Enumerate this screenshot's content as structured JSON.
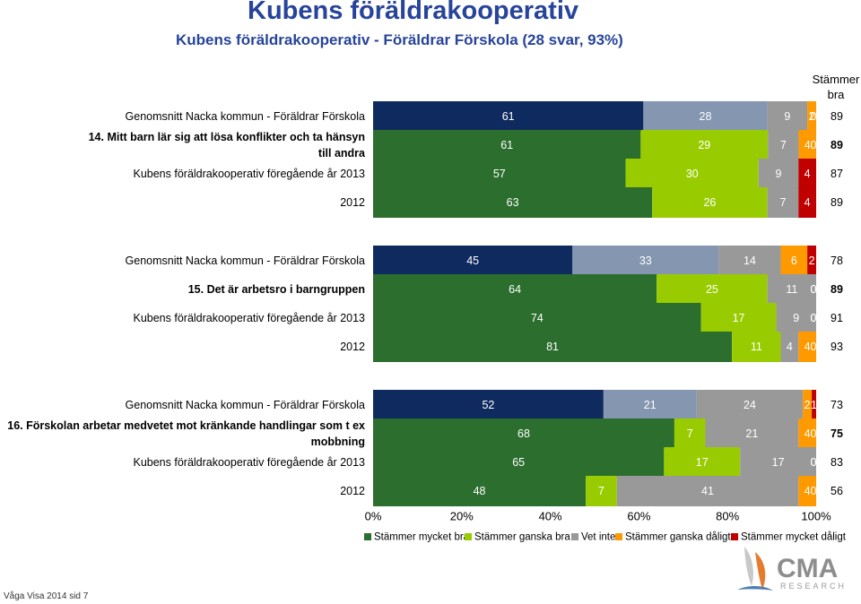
{
  "page": {
    "title": "Kubens föräldrakooperativ",
    "subtitle": "Kubens föräldrakooperativ - Föräldrar Förskola (28 svar, 93%)",
    "footer": "Våga Visa 2014 sid 7"
  },
  "logo": {
    "name": "CMA",
    "sub": "RESEARCH"
  },
  "colors": {
    "Stämmer mycket bra": "#2b6e2e",
    "Stämmer ganska bra": "#99cc00",
    "Vet inte": "#999999",
    "Stämmer ganska dåligt": "#ff9900",
    "Stämmer mycket dåligt": "#c00000",
    "navy": "#0f2a5f",
    "slate": "#8496b0",
    "title": "#27449a"
  },
  "chart_data": {
    "type": "bar",
    "orientation": "horizontal",
    "stacked": true,
    "percent": true,
    "xlim": [
      0,
      100
    ],
    "x_ticks": [
      "0%",
      "20%",
      "40%",
      "60%",
      "80%",
      "100%"
    ],
    "right_column_header": "Stämmer bra",
    "legend_position": "bottom",
    "series": [
      "Stämmer mycket bra",
      "Stämmer ganska bra",
      "Vet inte",
      "Stämmer ganska dåligt",
      "Stämmer mycket dåligt"
    ],
    "groups": [
      {
        "question": "14. Mitt barn lär sig att lösa konflikter och ta hänsyn till andra",
        "rows": [
          {
            "label": "Genomsnitt Nacka kommun - Föräldrar Förskola",
            "values": [
              61,
              28,
              9,
              2,
              0
            ],
            "total": "89",
            "scheme": "nacka"
          },
          {
            "label": "14. Mitt barn lär sig att lösa konflikter och ta hänsyn till andra",
            "values": [
              61,
              29,
              7,
              4,
              0
            ],
            "total": "89",
            "scheme": "main",
            "bold": true
          },
          {
            "label": "Kubens föräldrakooperativ föregående år 2013",
            "values": [
              57,
              30,
              9,
              0,
              4
            ],
            "total": "87",
            "scheme": "main"
          },
          {
            "label": "2012",
            "values": [
              63,
              26,
              7,
              0,
              4
            ],
            "total": "89",
            "scheme": "main"
          }
        ]
      },
      {
        "question": "15. Det är arbetsro i barngruppen",
        "rows": [
          {
            "label": "Genomsnitt Nacka kommun - Föräldrar Förskola",
            "values": [
              45,
              33,
              14,
              6,
              2
            ],
            "total": "78",
            "scheme": "nacka"
          },
          {
            "label": "15. Det är arbetsro i barngruppen",
            "values": [
              64,
              25,
              11,
              0,
              0
            ],
            "total": "89",
            "scheme": "main",
            "bold": true
          },
          {
            "label": "Kubens föräldrakooperativ föregående år 2013",
            "values": [
              74,
              17,
              9,
              0,
              0
            ],
            "total": "91",
            "scheme": "main"
          },
          {
            "label": "2012",
            "values": [
              81,
              11,
              4,
              4,
              0
            ],
            "total": "93",
            "scheme": "main"
          }
        ]
      },
      {
        "question": "16. Förskolan arbetar medvetet mot kränkande handlingar som t ex mobbning",
        "rows": [
          {
            "label": "Genomsnitt Nacka kommun - Föräldrar Förskola",
            "values": [
              52,
              21,
              24,
              2,
              1
            ],
            "total": "73",
            "scheme": "nacka"
          },
          {
            "label": "16. Förskolan arbetar medvetet mot kränkande handlingar som t ex mobbning",
            "values": [
              68,
              7,
              21,
              4,
              0
            ],
            "total": "75",
            "scheme": "main",
            "bold": true
          },
          {
            "label": "Kubens föräldrakooperativ föregående år 2013",
            "values": [
              65,
              17,
              17,
              0,
              0
            ],
            "total": "83",
            "scheme": "main"
          },
          {
            "label": "2012",
            "values": [
              48,
              7,
              41,
              4,
              0
            ],
            "total": "56",
            "scheme": "main"
          }
        ]
      }
    ]
  }
}
